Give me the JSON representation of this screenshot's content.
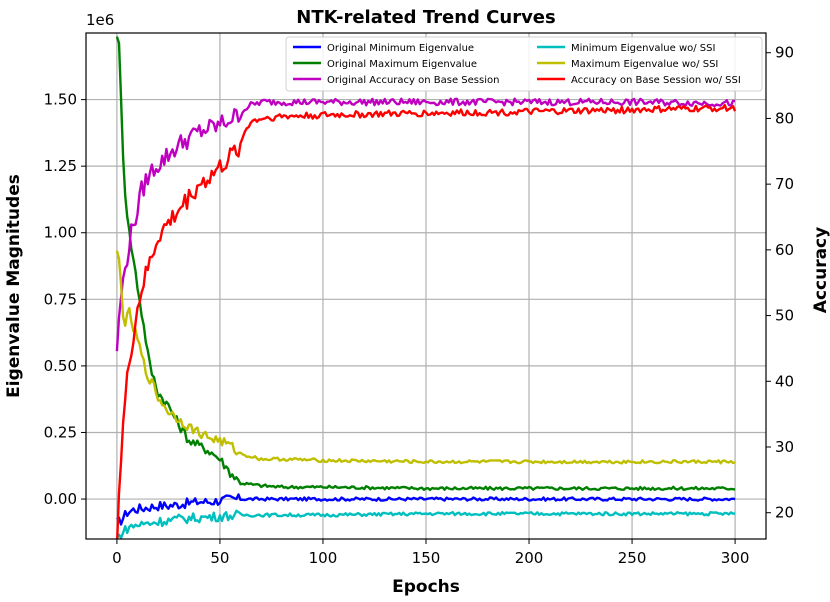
{
  "chart_data": {
    "type": "line",
    "title": "NTK-related Trend Curves",
    "xlabel": "Epochs",
    "ylabel": "Eigenvalue Magnitudes",
    "y2label": "Accuracy",
    "offset_text": "1e6",
    "xlim": [
      -15,
      315
    ],
    "ylim": [
      -0.15,
      1.75
    ],
    "y2lim": [
      16,
      93
    ],
    "xticks": [
      0,
      50,
      100,
      150,
      200,
      250,
      300
    ],
    "xtick_labels": [
      "0",
      "50",
      "100",
      "150",
      "200",
      "250",
      "300"
    ],
    "yticks": [
      0.0,
      0.25,
      0.5,
      0.75,
      1.0,
      1.25,
      1.5
    ],
    "ytick_labels": [
      "0.00",
      "0.25",
      "0.50",
      "0.75",
      "1.00",
      "1.25",
      "1.50"
    ],
    "y2ticks": [
      20,
      30,
      40,
      50,
      60,
      70,
      80,
      90
    ],
    "y2tick_labels": [
      "20",
      "30",
      "40",
      "50",
      "60",
      "70",
      "80",
      "90"
    ],
    "grid": true,
    "legend_location": "top-right",
    "series": [
      {
        "name": "Original Minimum Eigenvalue",
        "axis": "left",
        "color": "#0000ff",
        "x": [
          0,
          2,
          5,
          8,
          12,
          16,
          20,
          25,
          30,
          35,
          40,
          45,
          50,
          55,
          60,
          80,
          100,
          150,
          200,
          250,
          300
        ],
        "values": [
          -0.09,
          -0.08,
          -0.05,
          -0.04,
          -0.035,
          -0.03,
          -0.025,
          -0.025,
          -0.02,
          -0.015,
          -0.01,
          -0.01,
          -0.005,
          0.0,
          0.0,
          0.0,
          0.0,
          0.0,
          0.0,
          0.0,
          0.0
        ]
      },
      {
        "name": "Original Maximum Eigenvalue",
        "axis": "left",
        "color": "#008000",
        "x": [
          0,
          1,
          2,
          3,
          4,
          6,
          8,
          10,
          13,
          16,
          20,
          25,
          30,
          35,
          40,
          45,
          50,
          55,
          60,
          70,
          80,
          100,
          150,
          200,
          250,
          300
        ],
        "values": [
          1.75,
          1.7,
          1.5,
          1.3,
          1.15,
          1.0,
          0.9,
          0.8,
          0.65,
          0.5,
          0.4,
          0.35,
          0.28,
          0.22,
          0.2,
          0.18,
          0.15,
          0.1,
          0.06,
          0.05,
          0.045,
          0.045,
          0.04,
          0.04,
          0.04,
          0.04
        ]
      },
      {
        "name": "Original Accuracy on Base Session",
        "axis": "right",
        "color": "#c000c0",
        "x": [
          0,
          2,
          4,
          6,
          8,
          10,
          12,
          15,
          18,
          20,
          25,
          30,
          35,
          40,
          45,
          50,
          55,
          60,
          62,
          65,
          70,
          80,
          100,
          150,
          200,
          250,
          300
        ],
        "values": [
          45,
          53,
          57,
          61,
          64,
          66,
          69,
          71,
          72.5,
          73,
          74.5,
          76,
          77,
          78,
          78.5,
          79,
          80,
          80.5,
          81.5,
          82,
          82.5,
          82.5,
          82.5,
          82.5,
          82.5,
          82.5,
          82.3
        ]
      },
      {
        "name": "Minimum Eigenvalue wo/ SSI",
        "axis": "left",
        "color": "#00bfbf",
        "x": [
          0,
          2,
          5,
          8,
          12,
          16,
          20,
          25,
          30,
          40,
          50,
          60,
          80,
          100,
          150,
          200,
          250,
          300
        ],
        "values": [
          -0.15,
          -0.13,
          -0.11,
          -0.1,
          -0.095,
          -0.09,
          -0.085,
          -0.08,
          -0.075,
          -0.07,
          -0.065,
          -0.06,
          -0.06,
          -0.06,
          -0.055,
          -0.055,
          -0.055,
          -0.055
        ]
      },
      {
        "name": "Maximum Eigenvalue wo/ SSI",
        "axis": "left",
        "color": "#bfbf00",
        "x": [
          0,
          1,
          2,
          3,
          4,
          5,
          6,
          8,
          10,
          12,
          14,
          16,
          18,
          20,
          25,
          30,
          35,
          40,
          45,
          50,
          55,
          60,
          70,
          80,
          100,
          150,
          200,
          250,
          300
        ],
        "values": [
          0.92,
          0.9,
          0.8,
          0.7,
          0.66,
          0.68,
          0.7,
          0.64,
          0.6,
          0.54,
          0.48,
          0.45,
          0.42,
          0.38,
          0.33,
          0.3,
          0.27,
          0.25,
          0.23,
          0.22,
          0.2,
          0.17,
          0.15,
          0.15,
          0.145,
          0.14,
          0.14,
          0.14,
          0.14
        ]
      },
      {
        "name": "Accuracy on Base Session wo/ SSI",
        "axis": "right",
        "color": "#ff0000",
        "x": [
          0,
          1,
          2,
          3,
          4,
          5,
          6,
          8,
          10,
          12,
          15,
          18,
          20,
          25,
          30,
          35,
          40,
          45,
          50,
          55,
          60,
          62,
          65,
          70,
          80,
          100,
          150,
          200,
          250,
          300
        ],
        "values": [
          16,
          23,
          28,
          33,
          37,
          40,
          43,
          47,
          51,
          54,
          57,
          60,
          62,
          64,
          66,
          68,
          70,
          71,
          72.5,
          74,
          76,
          78,
          79.5,
          80,
          80.3,
          80.5,
          80.8,
          81,
          81.3,
          81.6
        ]
      }
    ]
  }
}
